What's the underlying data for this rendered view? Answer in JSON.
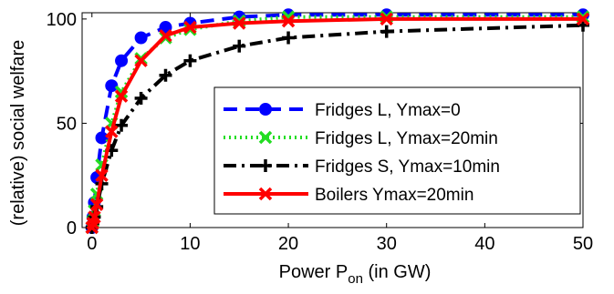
{
  "chart_data": {
    "type": "line",
    "xlabel_main": "Power P",
    "xlabel_sub": "on",
    "xlabel_tail": " (in GW)",
    "ylabel": "(relative) social welfare",
    "xlim": [
      -1,
      50
    ],
    "ylim": [
      0,
      103
    ],
    "xticks": [
      0,
      10,
      20,
      30,
      40,
      50
    ],
    "yticks": [
      0,
      50,
      100
    ],
    "grid": false,
    "legend_position": "lower-right",
    "series": [
      {
        "name": "Fridges L, Ymax=0",
        "color": "#0000ff",
        "dash": "15,9",
        "marker": "circle",
        "x": [
          0,
          0.1,
          0.25,
          0.5,
          1,
          2,
          3,
          5,
          7.5,
          10,
          15,
          20,
          30,
          50
        ],
        "y": [
          0,
          5,
          12,
          24,
          43,
          68,
          80,
          91,
          96,
          98,
          101,
          102,
          102,
          102
        ]
      },
      {
        "name": "Fridges L, Ymax=20min",
        "color": "#22dd22",
        "dash": "2,4",
        "marker": "cross",
        "x": [
          0,
          0.1,
          0.25,
          0.5,
          1,
          2,
          3,
          5,
          7.5,
          10,
          15,
          20,
          30,
          50
        ],
        "y": [
          0,
          3,
          8,
          16,
          30,
          50,
          65,
          81,
          91,
          95,
          99,
          101,
          101,
          101
        ]
      },
      {
        "name": "Fridges S, Ymax=10min",
        "color": "#000000",
        "dash": "14,6,3,6",
        "marker": "plus",
        "x": [
          0,
          0.1,
          0.25,
          0.5,
          1,
          2,
          3,
          5,
          7.5,
          10,
          15,
          20,
          30,
          50
        ],
        "y": [
          0,
          2,
          5,
          10,
          21,
          37,
          49,
          62,
          73,
          80,
          87,
          91,
          94,
          97
        ]
      },
      {
        "name": "Boilers Ymax=20min",
        "color": "#ff0000",
        "dash": "",
        "marker": "cross",
        "x": [
          0,
          0.1,
          0.25,
          0.5,
          1,
          2,
          3,
          5,
          7.5,
          10,
          15,
          20,
          30,
          50
        ],
        "y": [
          0,
          2,
          5,
          11,
          25,
          46,
          63,
          80,
          92,
          96,
          98,
          99,
          100,
          100
        ]
      }
    ]
  }
}
